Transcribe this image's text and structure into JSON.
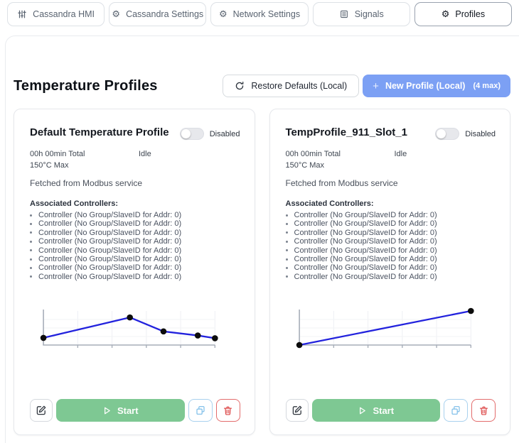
{
  "tabs": [
    {
      "label": "Cassandra HMI",
      "icon": "sliders-icon",
      "active": false
    },
    {
      "label": "Cassandra Settings",
      "icon": "gear-icon",
      "active": false
    },
    {
      "label": "Network Settings",
      "icon": "gear-icon",
      "active": false
    },
    {
      "label": "Signals",
      "icon": "list-icon",
      "active": false
    },
    {
      "label": "Profiles",
      "icon": "gear-icon",
      "active": true
    }
  ],
  "icons": {
    "gear_glyph": "⚙",
    "plus_glyph": "+"
  },
  "header": {
    "title": "Temperature Profiles",
    "restore_label": "Restore Defaults (Local)",
    "new_profile_label": "New Profile (Local)",
    "new_profile_limit": "(4 max)"
  },
  "colors": {
    "accent_blue": "#7ca0f4",
    "start_green": "#7ec893",
    "chart_line": "#2222dd",
    "copy_blue": "#86c2ea",
    "delete_red": "#dd4b4b"
  },
  "cards": [
    {
      "title": "Default Temperature Profile",
      "toggle_state": "off",
      "toggle_label": "Disabled",
      "total": "00h 00min Total",
      "status": "Idle",
      "max": "150°C Max",
      "source": "Fetched from Modbus service",
      "controllers_heading": "Associated Controllers:",
      "controllers": [
        "Controller (No Group/SlaveID for Addr: 0)",
        "Controller (No Group/SlaveID for Addr: 0)",
        "Controller (No Group/SlaveID for Addr: 0)",
        "Controller (No Group/SlaveID for Addr: 0)",
        "Controller (No Group/SlaveID for Addr: 0)",
        "Controller (No Group/SlaveID for Addr: 0)",
        "Controller (No Group/SlaveID for Addr: 0)",
        "Controller (No Group/SlaveID for Addr: 0)"
      ],
      "start_label": "Start",
      "chart": {
        "type": "line",
        "line_color": "#2222dd",
        "x_ticks": 5,
        "axis_labels_visible": false,
        "points": [
          [
            0,
            0.21
          ],
          [
            0.504,
            0.81
          ],
          [
            0.7,
            0.4
          ],
          [
            0.9,
            0.28
          ],
          [
            1.0,
            0.2
          ]
        ]
      }
    },
    {
      "title": "TempProfile_911_Slot_1",
      "toggle_state": "off",
      "toggle_label": "Disabled",
      "total": "00h 00min Total",
      "status": "Idle",
      "max": "150°C Max",
      "source": "Fetched from Modbus service",
      "controllers_heading": "Associated Controllers:",
      "controllers": [
        "Controller (No Group/SlaveID for Addr: 0)",
        "Controller (No Group/SlaveID for Addr: 0)",
        "Controller (No Group/SlaveID for Addr: 0)",
        "Controller (No Group/SlaveID for Addr: 0)",
        "Controller (No Group/SlaveID for Addr: 0)",
        "Controller (No Group/SlaveID for Addr: 0)",
        "Controller (No Group/SlaveID for Addr: 0)",
        "Controller (No Group/SlaveID for Addr: 0)"
      ],
      "start_label": "Start",
      "chart": {
        "type": "line",
        "line_color": "#2222dd",
        "x_ticks": 5,
        "axis_labels_visible": false,
        "points": [
          [
            0,
            0.0
          ],
          [
            1.0,
            1.0
          ]
        ]
      }
    }
  ]
}
